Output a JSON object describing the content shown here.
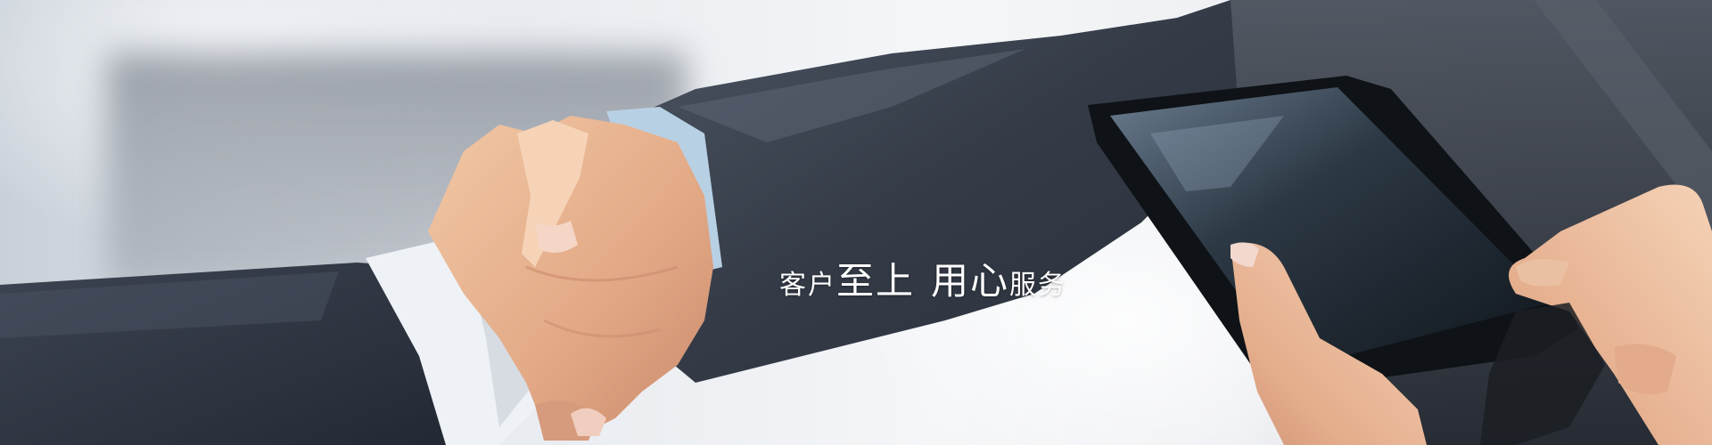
{
  "slogan": {
    "part1": "客户",
    "part2": "至上",
    "part3": "用心",
    "part4": "服务"
  }
}
